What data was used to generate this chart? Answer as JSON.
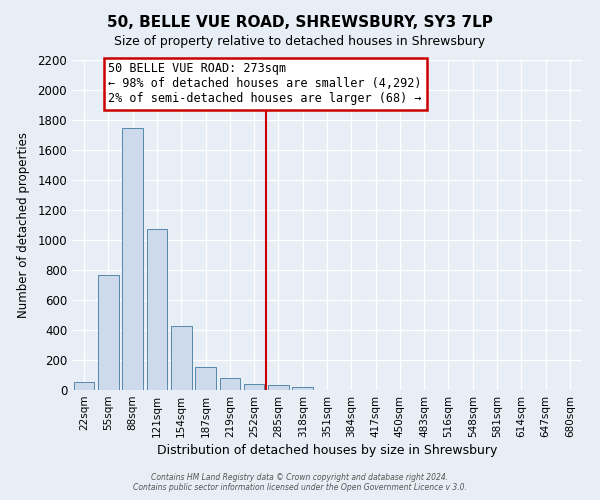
{
  "title": "50, BELLE VUE ROAD, SHREWSBURY, SY3 7LP",
  "subtitle": "Size of property relative to detached houses in Shrewsbury",
  "xlabel": "Distribution of detached houses by size in Shrewsbury",
  "ylabel": "Number of detached properties",
  "bar_labels": [
    "22sqm",
    "55sqm",
    "88sqm",
    "121sqm",
    "154sqm",
    "187sqm",
    "219sqm",
    "252sqm",
    "285sqm",
    "318sqm",
    "351sqm",
    "384sqm",
    "417sqm",
    "450sqm",
    "483sqm",
    "516sqm",
    "548sqm",
    "581sqm",
    "614sqm",
    "647sqm",
    "680sqm"
  ],
  "bar_values": [
    55,
    765,
    1745,
    1075,
    430,
    155,
    80,
    40,
    35,
    20,
    0,
    0,
    0,
    0,
    0,
    0,
    0,
    0,
    0,
    0,
    0
  ],
  "bar_color": "#ccdaeb",
  "bar_edge_color": "#5588aa",
  "vline_x_index": 8,
  "vline_label": "50 BELLE VUE ROAD: 273sqm",
  "annotation_line1": "← 98% of detached houses are smaller (4,292)",
  "annotation_line2": "2% of semi-detached houses are larger (68) →",
  "annotation_box_color": "#ffffff",
  "annotation_box_edge": "#cc0000",
  "vline_color": "#cc0000",
  "ylim": [
    0,
    2200
  ],
  "yticks": [
    0,
    200,
    400,
    600,
    800,
    1000,
    1200,
    1400,
    1600,
    1800,
    2000,
    2200
  ],
  "footer1": "Contains HM Land Registry data © Crown copyright and database right 2024.",
  "footer2": "Contains public sector information licensed under the Open Government Licence v 3.0.",
  "bg_color": "#e8eef5",
  "grid_color": "#ffffff",
  "title_fontsize": 11,
  "subtitle_fontsize": 9
}
